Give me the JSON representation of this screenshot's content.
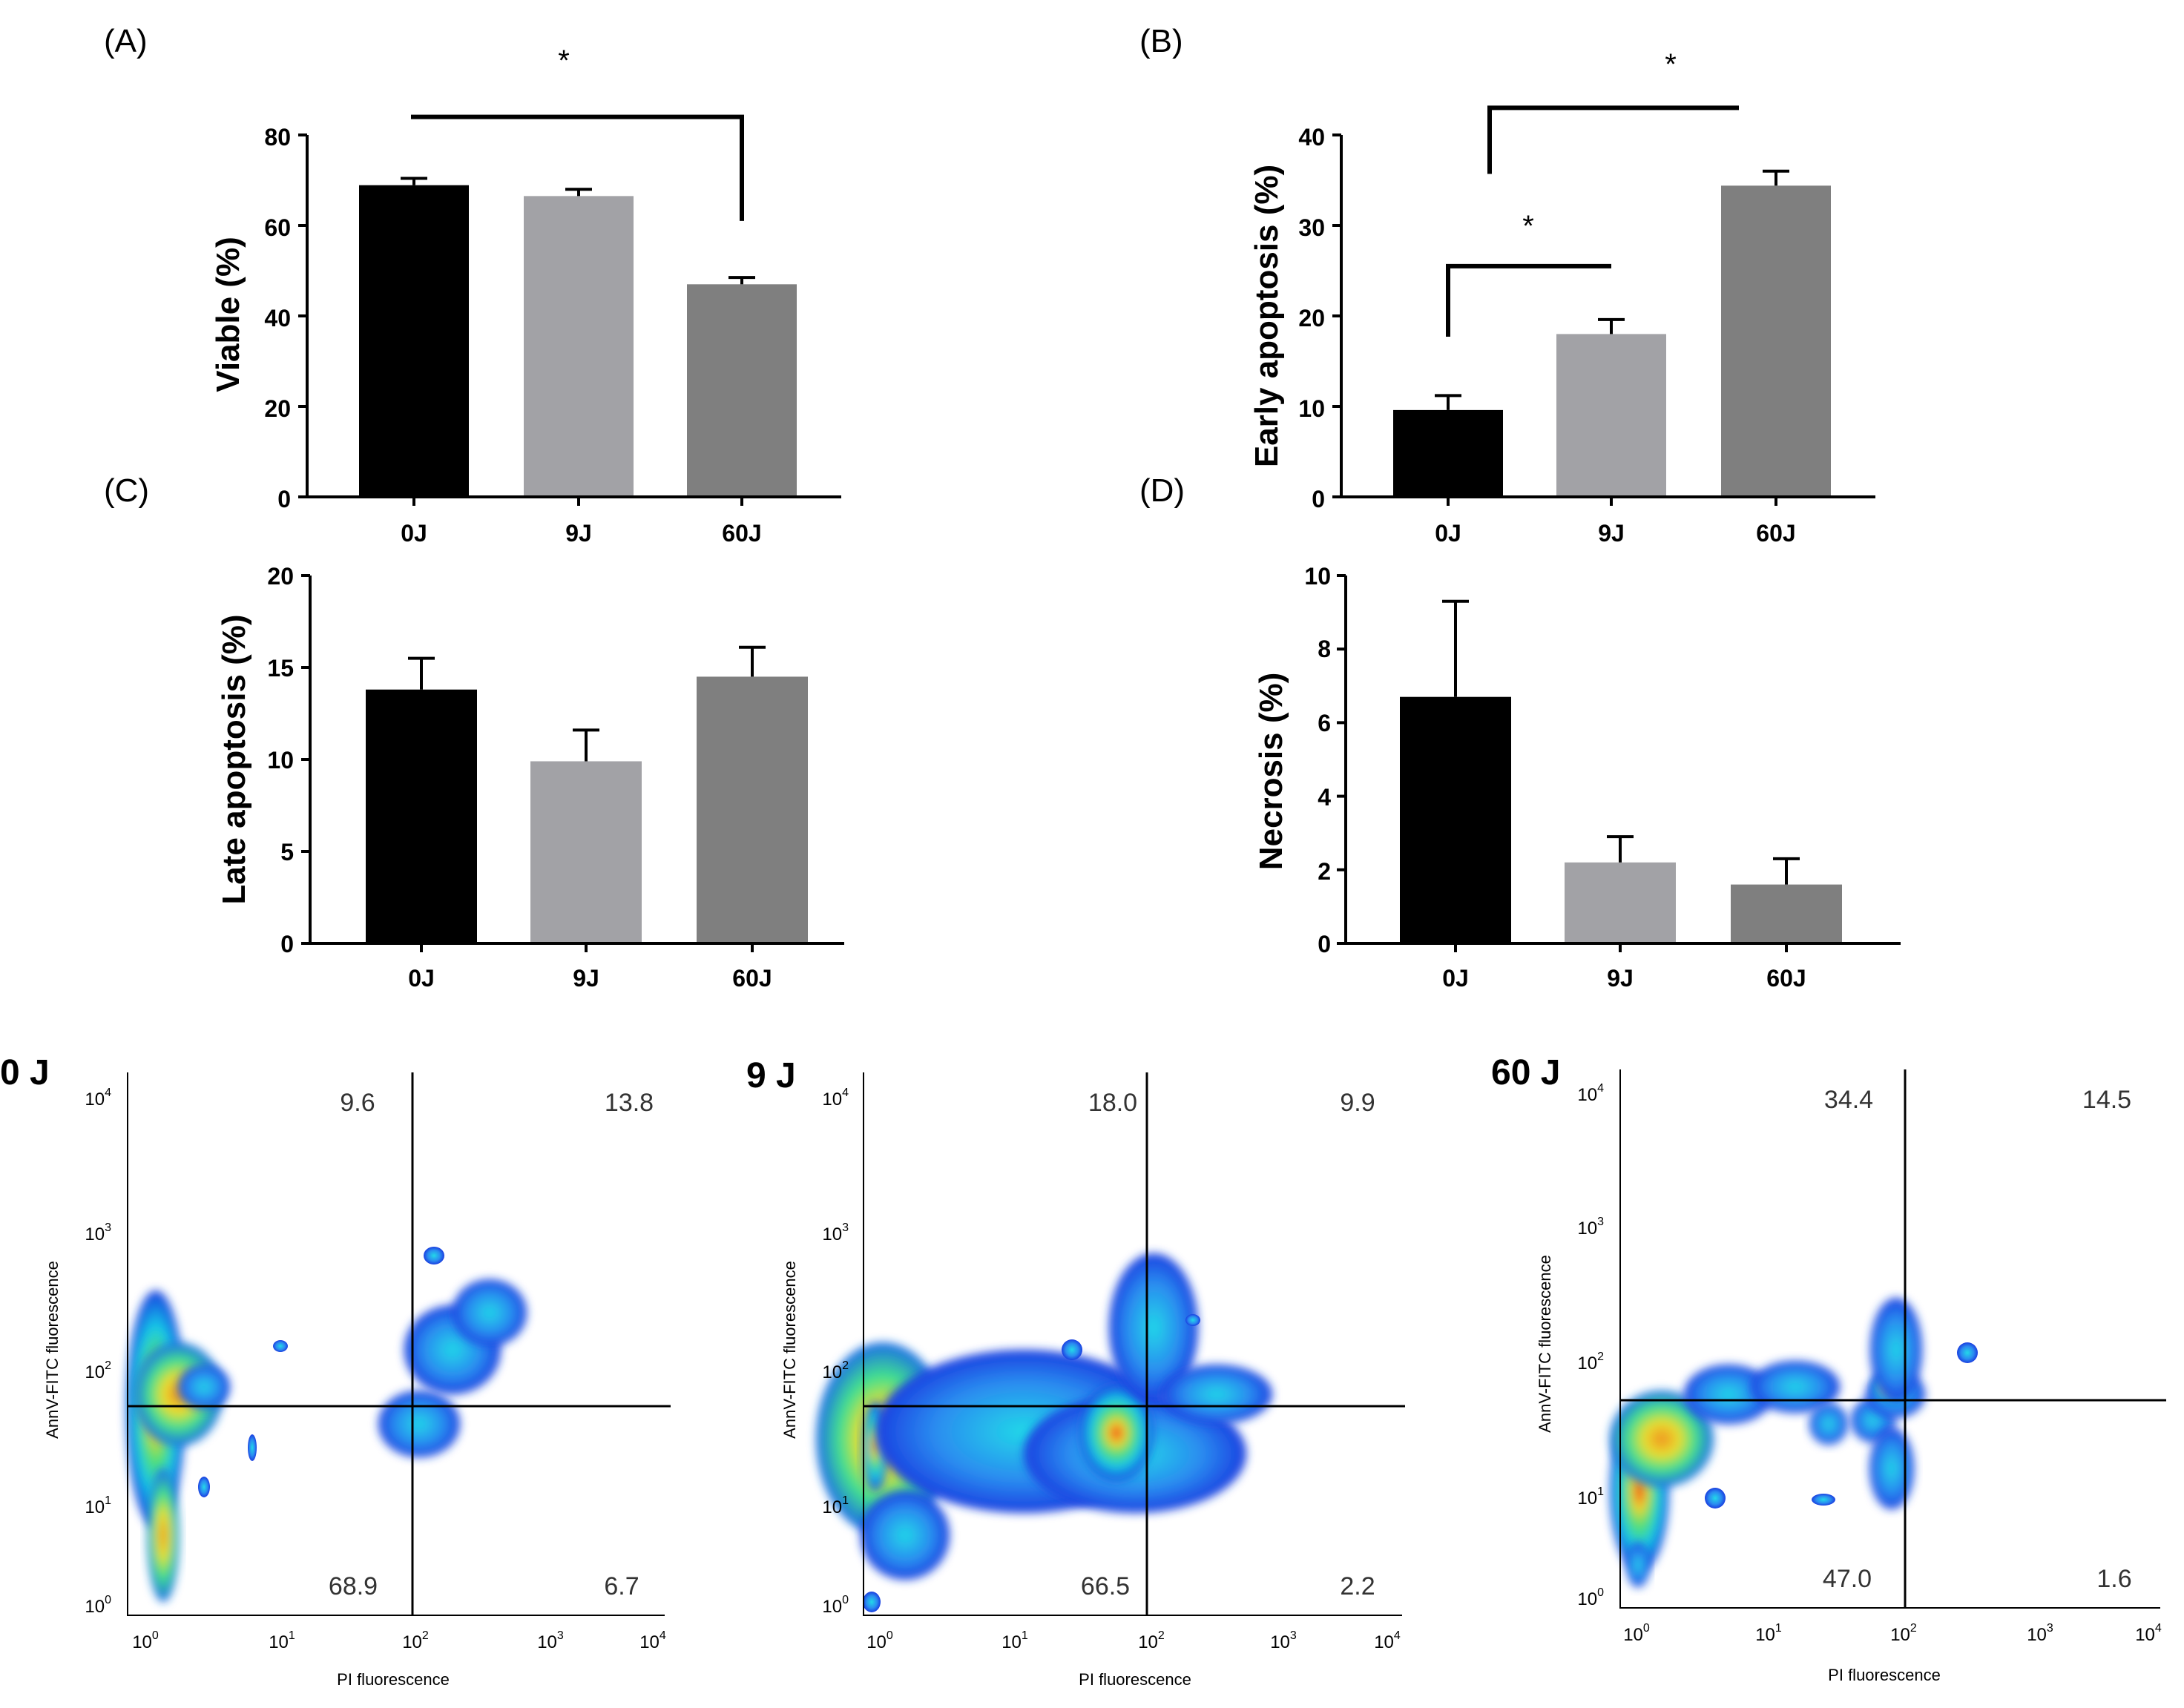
{
  "colors": {
    "c0": "#000000",
    "c9": "#a2a2a6",
    "c60": "#7f7f7f",
    "axis": "#000000"
  },
  "chart_data": [
    {
      "type": "bar",
      "panel": "(A)",
      "ylabel": "Viable (%)",
      "categories": [
        "0J",
        "9J",
        "60J"
      ],
      "values": [
        68.9,
        66.5,
        47.0
      ],
      "errors": [
        1.5,
        1.5,
        1.5
      ],
      "ylim": [
        0,
        80
      ],
      "yticks": [
        "0",
        "20",
        "40",
        "60",
        "80"
      ],
      "significance": [
        {
          "from": 0,
          "to": 2,
          "label": "*",
          "y": 84
        }
      ]
    },
    {
      "type": "bar",
      "panel": "(B)",
      "ylabel": "Early apoptosis (%)",
      "categories": [
        "0J",
        "9J",
        "60J"
      ],
      "values": [
        9.6,
        18.0,
        34.4
      ],
      "errors": [
        1.6,
        1.6,
        1.6
      ],
      "ylim": [
        0,
        40
      ],
      "yticks": [
        "0",
        "10",
        "20",
        "30",
        "40"
      ],
      "significance": [
        {
          "from": 0,
          "to": 1,
          "label": "*",
          "y": 25.5
        },
        {
          "from": 0,
          "to": 2,
          "label": "*",
          "y": 43
        }
      ]
    },
    {
      "type": "bar",
      "panel": "(C)",
      "ylabel": "Late apoptosis (%)",
      "categories": [
        "0J",
        "9J",
        "60J"
      ],
      "values": [
        13.8,
        9.9,
        14.5
      ],
      "errors": [
        1.7,
        1.7,
        1.6
      ],
      "ylim": [
        0,
        20
      ],
      "yticks": [
        "0",
        "5",
        "10",
        "15",
        "20"
      ],
      "significance": []
    },
    {
      "type": "bar",
      "panel": "(D)",
      "ylabel": "Necrosis (%)",
      "categories": [
        "0J",
        "9J",
        "60J"
      ],
      "values": [
        6.7,
        2.2,
        1.6
      ],
      "errors": [
        2.6,
        0.7,
        0.7
      ],
      "ylim": [
        0,
        10
      ],
      "yticks": [
        "0",
        "2",
        "4",
        "6",
        "8",
        "10"
      ],
      "significance": []
    },
    {
      "type": "scatter",
      "label": "0 J",
      "xlabel": "PI fluorescence",
      "ylabel": "AnnV-FITC fluorescence",
      "quadrants": {
        "ul": "9.6",
        "ur": "13.8",
        "ll": "68.9",
        "lr": "6.7"
      }
    },
    {
      "type": "scatter",
      "label": "9 J",
      "xlabel": "PI fluorescence",
      "ylabel": "AnnV-FITC fluorescence",
      "quadrants": {
        "ul": "18.0",
        "ur": "9.9",
        "ll": "66.5",
        "lr": "2.2"
      }
    },
    {
      "type": "scatter",
      "label": "60 J",
      "xlabel": "PI fluorescence",
      "ylabel": "AnnV-FITC fluorescence",
      "quadrants": {
        "ul": "34.4",
        "ur": "14.5",
        "ll": "47.0",
        "lr": "1.6"
      }
    }
  ]
}
